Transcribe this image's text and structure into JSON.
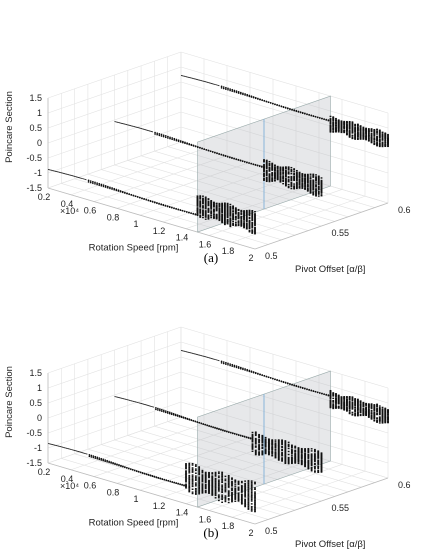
{
  "chart_data": [
    {
      "panel_label": "(a)",
      "type": "scatter",
      "zlabel": "Poincare Section",
      "xlabel": "Rotation Speed [rpm]",
      "ylabel": "Pivot Offset [α/β]",
      "x_multiplier_label": "×10⁴",
      "x_ticks": [
        "0.2",
        "0.4",
        "0.6",
        "0.8",
        "1",
        "1.2",
        "1.4",
        "1.6",
        "1.8",
        "2"
      ],
      "y_ticks": [
        "0.5",
        "0.55",
        "0.6"
      ],
      "z_ticks": [
        "1.5",
        "1",
        "0.5",
        "0",
        "-0.5",
        "-1",
        "-1.5"
      ],
      "xlim": [
        0.2,
        2.0
      ],
      "ylim": [
        0.5,
        0.6
      ],
      "zlim": [
        -1.5,
        1.5
      ],
      "plane_x": 1.5,
      "grid": true,
      "series": [
        {
          "pivot_offset": 0.5,
          "stable_until": 1.5,
          "periodic_values": [
            -0.88,
            -0.94
          ],
          "chaos_range": [
            -1.0,
            -0.25
          ]
        },
        {
          "pivot_offset": 0.55,
          "stable_until": 1.5,
          "periodic_values": [
            -0.05,
            -0.12
          ],
          "chaos_range": [
            -0.55,
            0.15
          ]
        },
        {
          "pivot_offset": 0.6,
          "stable_until": 1.5,
          "periodic_values": [
            0.72,
            0.66
          ],
          "chaos_range": [
            0.3,
            0.85
          ]
        }
      ]
    },
    {
      "panel_label": "(b)",
      "type": "scatter",
      "zlabel": "Poincare Section",
      "xlabel": "Rotation Speed [rpm]",
      "ylabel": "Pivot Offset [α/β]",
      "x_multiplier_label": "×10⁴",
      "x_ticks": [
        "0.2",
        "0.4",
        "0.6",
        "0.8",
        "1",
        "1.2",
        "1.4",
        "1.6",
        "1.8",
        "2"
      ],
      "y_ticks": [
        "0.5",
        "0.55",
        "0.6"
      ],
      "z_ticks": [
        "1.5",
        "1",
        "0.5",
        "0",
        "-0.5",
        "-1",
        "-1.5"
      ],
      "xlim": [
        0.2,
        2.0
      ],
      "ylim": [
        0.5,
        0.6
      ],
      "zlim": [
        -1.5,
        1.5
      ],
      "plane_x": 1.5,
      "grid": true,
      "series": [
        {
          "pivot_offset": 0.5,
          "stable_until": 1.4,
          "periodic_values": [
            -0.85,
            -0.92
          ],
          "chaos_range": [
            -1.1,
            -0.1
          ]
        },
        {
          "pivot_offset": 0.55,
          "stable_until": 1.4,
          "periodic_values": [
            -0.05,
            -0.12
          ],
          "chaos_range": [
            -0.6,
            0.15
          ]
        },
        {
          "pivot_offset": 0.6,
          "stable_until": 1.5,
          "periodic_values": [
            0.72,
            0.66
          ],
          "chaos_range": [
            0.25,
            0.85
          ]
        }
      ]
    }
  ]
}
